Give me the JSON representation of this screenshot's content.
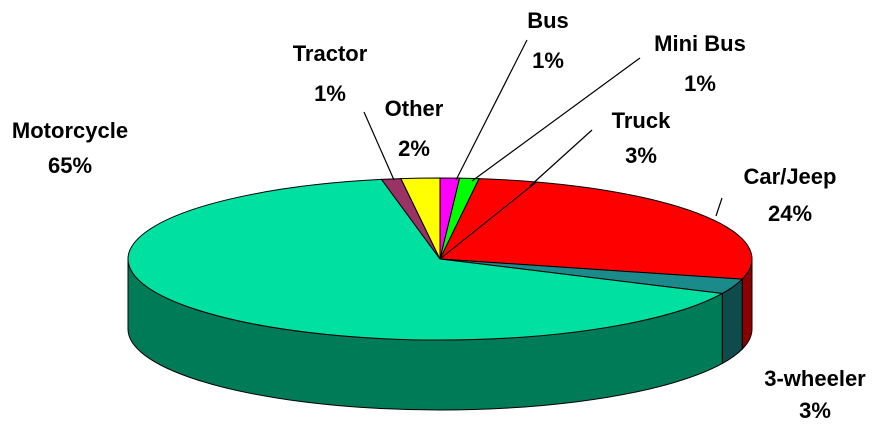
{
  "chart_data": {
    "type": "pie3d",
    "categories": [
      "Bus",
      "Mini Bus",
      "Truck",
      "Car/Jeep",
      "3-wheeler",
      "Motorcycle",
      "Tractor",
      "Other"
    ],
    "values": [
      1,
      1,
      3,
      24,
      3,
      65,
      1,
      2
    ],
    "value_labels": [
      "1%",
      "1%",
      "3%",
      "24%",
      "3%",
      "65%",
      "1%",
      "2%"
    ],
    "colors": [
      "#ff00ff",
      "#00ff00",
      "#ff0000",
      "#ff0000",
      "#1a8a8a",
      "#00e0a0",
      "#993366",
      "#ffff00"
    ]
  }
}
